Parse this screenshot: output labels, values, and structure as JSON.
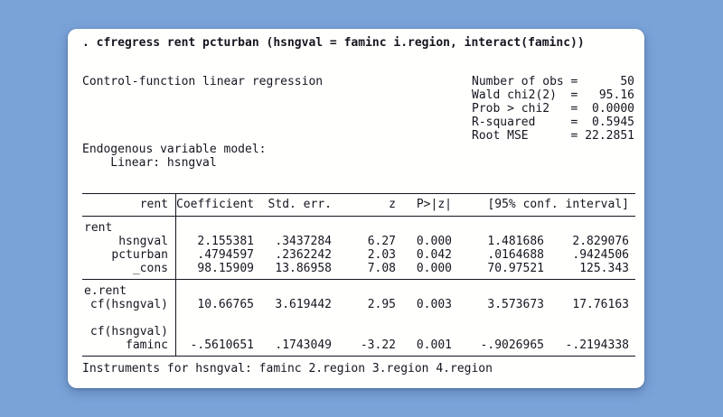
{
  "colors": {
    "background": "#7aa3d8",
    "card": "#fffffe",
    "text": "#15151f"
  },
  "command": ". cfregress rent pcturban (hsngval = faminc i.region, interact(faminc))",
  "header": {
    "title": "Control-function linear regression",
    "stats": [
      {
        "label": "Number of obs",
        "eq": "=",
        "value": "50"
      },
      {
        "label": "Wald chi2(2)",
        "eq": "=",
        "value": "95.16"
      },
      {
        "label": "Prob > chi2",
        "eq": "=",
        "value": "0.0000"
      },
      {
        "label": "R-squared",
        "eq": "=",
        "value": "0.5945"
      },
      {
        "label": "Root MSE",
        "eq": "=",
        "value": "22.2851"
      }
    ]
  },
  "model_note": {
    "line1": "Endogenous variable model:",
    "line2": "Linear: hsngval"
  },
  "table": {
    "header": {
      "depvar": "rent",
      "coef": "Coefficient",
      "se": "Std. err.",
      "z": "z",
      "p": "P>|z|",
      "ci": "[95% conf. interval]"
    },
    "rows": [
      {
        "label": "rent"
      },
      {
        "label": "hsngval",
        "coef": "2.155381",
        "se": ".3437284",
        "z": "6.27",
        "p": "0.000",
        "lo": "1.481686",
        "hi": "2.829076"
      },
      {
        "label": "pcturban",
        "coef": ".4794597",
        "se": ".2362242",
        "z": "2.03",
        "p": "0.042",
        "lo": ".0164688",
        "hi": ".9424506"
      },
      {
        "label": "_cons",
        "coef": "98.15909",
        "se": "13.86958",
        "z": "7.08",
        "p": "0.000",
        "lo": "70.97521",
        "hi": "125.343"
      },
      {
        "label": "e.rent"
      },
      {
        "label": "cf(hsngval)",
        "coef": "10.66765",
        "se": "3.619442",
        "z": "2.95",
        "p": "0.003",
        "lo": "3.573673",
        "hi": "17.76163"
      },
      {
        "label": ""
      },
      {
        "label": "cf(hsngval)"
      },
      {
        "label": "faminc",
        "coef": "-.5610651",
        "se": ".1743049",
        "z": "-3.22",
        "p": "0.001",
        "lo": "-.9026965",
        "hi": "-.2194338"
      }
    ]
  },
  "footer": "Instruments for hsngval: faminc 2.region 3.region 4.region"
}
